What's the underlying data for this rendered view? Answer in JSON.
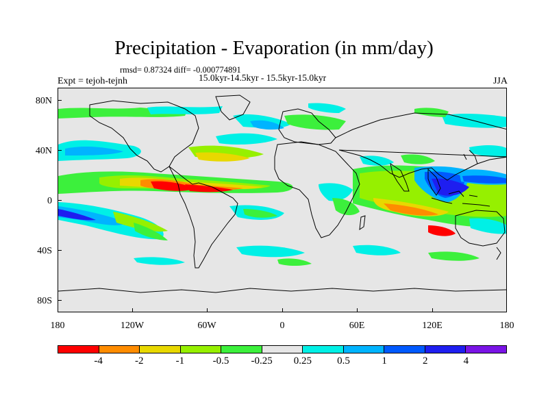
{
  "title": "Precipitation - Evaporation (in mm/day)",
  "stats": "rmsd= 0.87324 diff= -0.000774891",
  "period": "15.0kyr-14.5kyr - 15.5kyr-15.0kyr",
  "experiment": "Expt = tejoh-tejnh",
  "season": "JJA",
  "lat_labels": [
    "80N",
    "40N",
    "0",
    "40S",
    "80S"
  ],
  "lon_labels": [
    "180",
    "120W",
    "60W",
    "0",
    "60E",
    "120E",
    "180"
  ],
  "colorbar": {
    "colors": [
      "#ff0000",
      "#ff8c00",
      "#e8d800",
      "#96f000",
      "#3cf03c",
      "#e6e6e6",
      "#00f0e6",
      "#00b4ff",
      "#005aff",
      "#1e1ef0",
      "#7a14e6"
    ],
    "labels": [
      "-4",
      "-2",
      "-1",
      "-0.5",
      "-0.25",
      "0.25",
      "0.5",
      "1",
      "2",
      "4"
    ]
  }
}
